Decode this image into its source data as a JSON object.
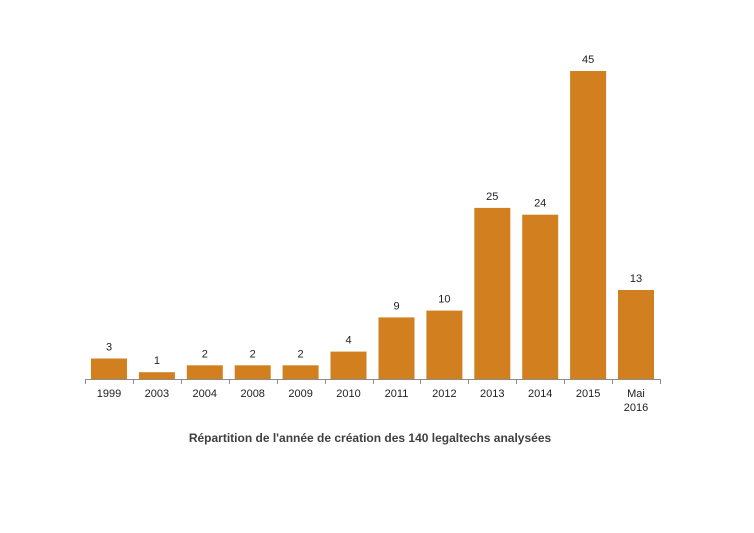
{
  "chart_data": {
    "type": "bar",
    "categories": [
      "1999",
      "2003",
      "2004",
      "2008",
      "2009",
      "2010",
      "2011",
      "2012",
      "2013",
      "2014",
      "2015",
      "Mai 2016"
    ],
    "category_lines": [
      [
        "1999"
      ],
      [
        "2003"
      ],
      [
        "2004"
      ],
      [
        "2008"
      ],
      [
        "2009"
      ],
      [
        "2010"
      ],
      [
        "2011"
      ],
      [
        "2012"
      ],
      [
        "2013"
      ],
      [
        "2014"
      ],
      [
        "2015"
      ],
      [
        "Mai",
        "2016"
      ]
    ],
    "values": [
      3,
      1,
      2,
      2,
      2,
      4,
      9,
      10,
      25,
      24,
      45,
      13
    ],
    "value_labels": [
      "3",
      "1",
      "2",
      "2",
      "2",
      "4",
      "9",
      "10",
      "25",
      "24",
      "45",
      "13"
    ],
    "title": "Répartition de l'année de création des 140 legaltechs analysées",
    "xlabel": "",
    "ylabel": "",
    "ylim": [
      0,
      45
    ],
    "grid": false,
    "legend": "none",
    "bar_color": "#D2801F",
    "axis_color": "#8c8c8c"
  }
}
